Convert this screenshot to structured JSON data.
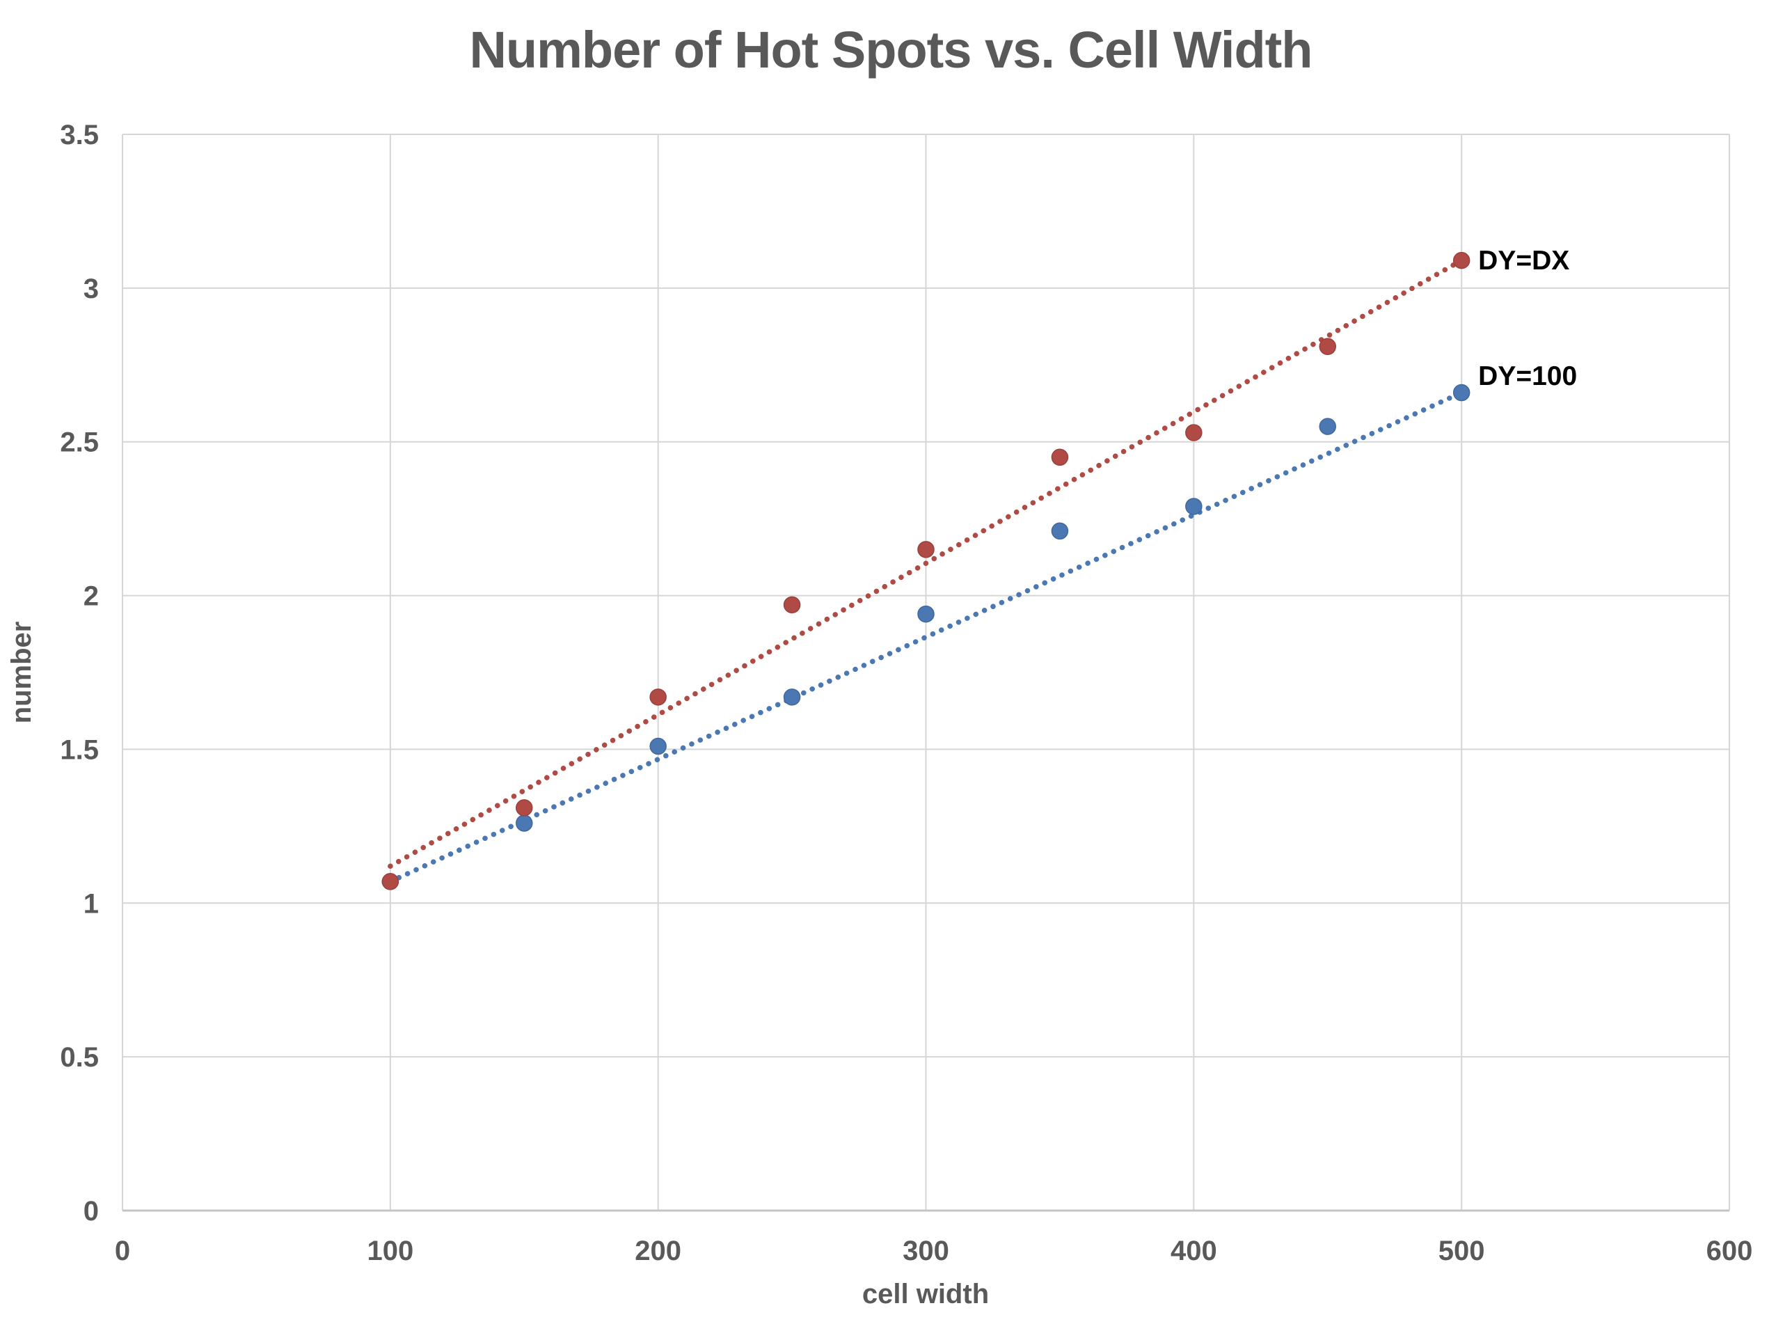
{
  "chart_data": {
    "type": "scatter",
    "title": "Number of Hot Spots vs. Cell Width",
    "xlabel": "cell width",
    "ylabel": "number",
    "xlim": [
      0,
      600
    ],
    "ylim": [
      0,
      3.5
    ],
    "x_ticks": [
      0,
      100,
      200,
      300,
      400,
      500,
      600
    ],
    "x_tick_labels": [
      "0",
      "100",
      "200",
      "300",
      "400",
      "500",
      "600"
    ],
    "y_ticks": [
      0,
      0.5,
      1,
      1.5,
      2,
      2.5,
      3,
      3.5
    ],
    "y_tick_labels": [
      "0",
      "0.5",
      "1",
      "1.5",
      "2",
      "2.5",
      "3",
      "3.5"
    ],
    "grid": true,
    "legend_position": "labels-at-line-end",
    "colors": {
      "grid": "#d6d6d6",
      "axis_line": "#c4c4c4",
      "axis_text": "#595959",
      "series_label_text": "#000000"
    },
    "series": [
      {
        "name": "DY=DX",
        "label": "DY=DX",
        "color": "#b04a45",
        "marker_edge": "#9c403c",
        "x": [
          100,
          150,
          200,
          250,
          300,
          350,
          400,
          450,
          500
        ],
        "y": [
          1.07,
          1.31,
          1.67,
          1.97,
          2.15,
          2.45,
          2.53,
          2.81,
          3.09
        ],
        "trendline": {
          "style": "dotted",
          "x": [
            100,
            500
          ],
          "y": [
            1.12,
            3.09
          ]
        }
      },
      {
        "name": "DY=100",
        "label": "DY=100",
        "color": "#4b78b3",
        "marker_edge": "#40689d",
        "x": [
          100,
          150,
          200,
          250,
          300,
          350,
          400,
          450,
          500
        ],
        "y": [
          1.07,
          1.26,
          1.51,
          1.67,
          1.94,
          2.21,
          2.29,
          2.55,
          2.66
        ],
        "trendline": {
          "style": "dotted",
          "x": [
            100,
            500
          ],
          "y": [
            1.07,
            2.66
          ]
        }
      }
    ]
  }
}
